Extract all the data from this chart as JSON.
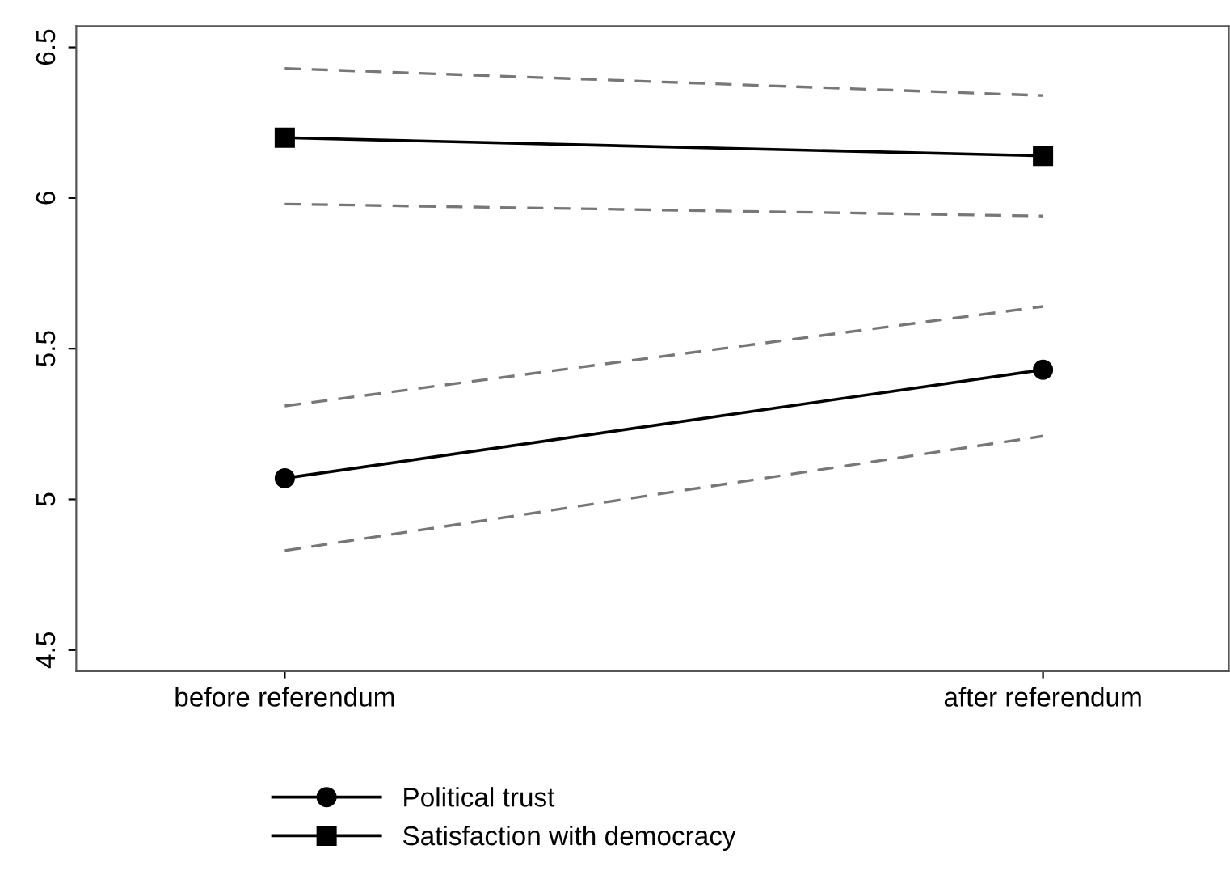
{
  "chart_data": {
    "type": "line",
    "categories": [
      "before referendum",
      "after referendum"
    ],
    "series": [
      {
        "color": "#777777",
        "line_style": "dashed",
        "marker": "none",
        "values": [
          4.83,
          5.21
        ]
      },
      {
        "color": "#777777",
        "line_style": "dashed",
        "marker": "none",
        "values": [
          5.31,
          5.64
        ]
      },
      {
        "color": "#777777",
        "line_style": "dashed",
        "marker": "none",
        "values": [
          5.98,
          5.94
        ]
      },
      {
        "color": "#777777",
        "line_style": "dashed",
        "marker": "none",
        "values": [
          6.43,
          6.34
        ]
      },
      {
        "name": "Political trust",
        "color": "#000000",
        "line_style": "solid",
        "marker": "circle",
        "values": [
          5.07,
          5.43
        ]
      },
      {
        "name": "Satisfaction with democracy",
        "color": "#000000",
        "line_style": "solid",
        "marker": "square",
        "values": [
          6.2,
          6.14
        ]
      }
    ],
    "ylim": [
      4.43,
      6.57
    ],
    "yticks": [
      4.5,
      5,
      5.5,
      6,
      6.5
    ],
    "legend": "bottom"
  }
}
